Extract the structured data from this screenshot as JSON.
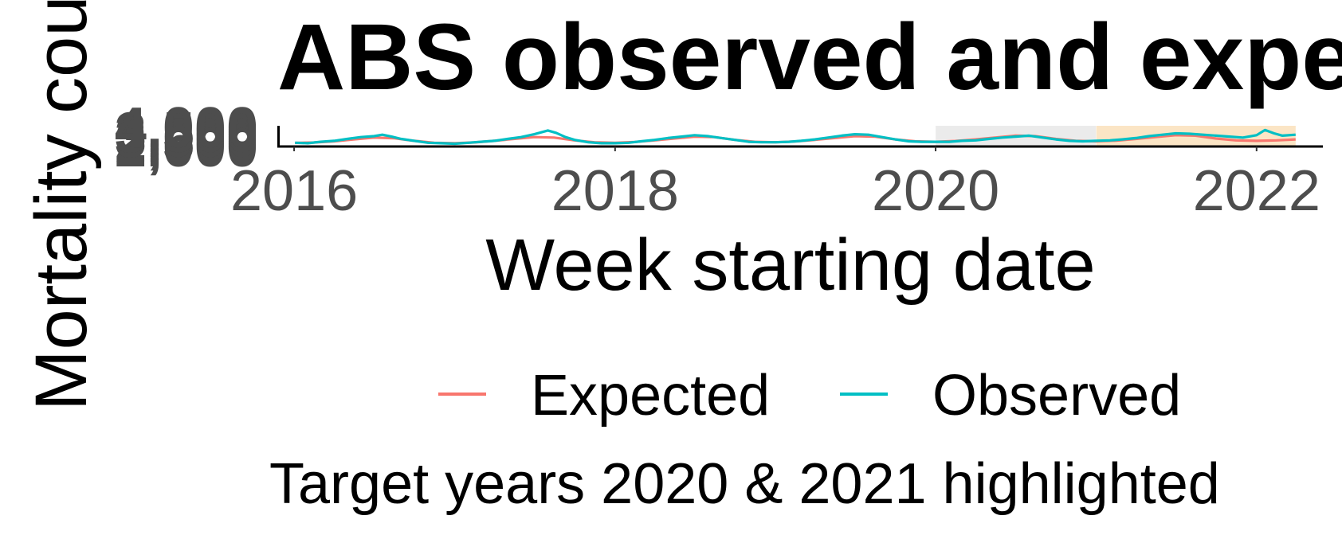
{
  "chart_data": {
    "type": "line",
    "title": "ABS observed and expected",
    "xlabel": "Week starting date",
    "ylabel": "Mortality count",
    "caption": "Target years 2020 & 2021 highlighted",
    "x_range": [
      "2015-12-01",
      "2022-06-01"
    ],
    "ylim": [
      1900,
      4100
    ],
    "x_ticks": [
      {
        "label": "2016",
        "date": "2016-01-01"
      },
      {
        "label": "2018",
        "date": "2018-01-01"
      },
      {
        "label": "2020",
        "date": "2020-01-01"
      },
      {
        "label": "2022",
        "date": "2022-01-01"
      }
    ],
    "y_ticks": [
      {
        "label": "2,000",
        "value": 2000
      },
      {
        "label": "2,500",
        "value": 2500
      },
      {
        "label": "3,000",
        "value": 3000
      },
      {
        "label": "3,500",
        "value": 3500
      },
      {
        "label": "4,000",
        "value": 4000
      }
    ],
    "highlight_regions": [
      {
        "label": "2020",
        "start": "2020-01-01",
        "end": "2020-12-31",
        "color": "#ebebeb"
      },
      {
        "label": "2021",
        "start": "2021-01-01",
        "end": "2022-03-31",
        "color": "#fbe5c5"
      }
    ],
    "legend": {
      "position": "bottom",
      "entries": [
        "Expected",
        "Observed"
      ]
    },
    "series": [
      {
        "name": "Expected",
        "color": "#f8766d",
        "points": [
          [
            "2016-01-03",
            2280
          ],
          [
            "2016-02-15",
            2320
          ],
          [
            "2016-04-01",
            2450
          ],
          [
            "2016-05-15",
            2650
          ],
          [
            "2016-07-01",
            2850
          ],
          [
            "2016-08-15",
            2780
          ],
          [
            "2016-10-01",
            2500
          ],
          [
            "2016-11-15",
            2300
          ],
          [
            "2017-01-01",
            2250
          ],
          [
            "2017-02-15",
            2330
          ],
          [
            "2017-04-01",
            2500
          ],
          [
            "2017-05-15",
            2700
          ],
          [
            "2017-07-01",
            2900
          ],
          [
            "2017-08-15",
            2850
          ],
          [
            "2017-10-01",
            2550
          ],
          [
            "2017-11-15",
            2350
          ],
          [
            "2018-01-01",
            2300
          ],
          [
            "2018-02-15",
            2380
          ],
          [
            "2018-04-01",
            2550
          ],
          [
            "2018-05-15",
            2750
          ],
          [
            "2018-07-01",
            2950
          ],
          [
            "2018-08-15",
            2900
          ],
          [
            "2018-10-01",
            2600
          ],
          [
            "2018-11-15",
            2400
          ],
          [
            "2019-01-01",
            2350
          ],
          [
            "2019-02-15",
            2430
          ],
          [
            "2019-04-01",
            2600
          ],
          [
            "2019-05-15",
            2800
          ],
          [
            "2019-07-01",
            3000
          ],
          [
            "2019-08-15",
            2950
          ],
          [
            "2019-10-01",
            2650
          ],
          [
            "2019-11-15",
            2450
          ],
          [
            "2020-01-01",
            2400
          ],
          [
            "2020-02-15",
            2480
          ],
          [
            "2020-04-01",
            2650
          ],
          [
            "2020-05-15",
            2850
          ],
          [
            "2020-07-01",
            3050
          ],
          [
            "2020-08-15",
            3000
          ],
          [
            "2020-10-01",
            2700
          ],
          [
            "2020-11-15",
            2500
          ],
          [
            "2021-01-01",
            2450
          ],
          [
            "2021-02-15",
            2530
          ],
          [
            "2021-04-01",
            2700
          ],
          [
            "2021-05-15",
            2900
          ],
          [
            "2021-07-01",
            3100
          ],
          [
            "2021-08-15",
            3050
          ],
          [
            "2021-10-01",
            2750
          ],
          [
            "2021-11-15",
            2550
          ],
          [
            "2022-01-01",
            2500
          ],
          [
            "2022-02-15",
            2550
          ],
          [
            "2022-03-31",
            2650
          ]
        ]
      },
      {
        "name": "Observed",
        "color": "#00bfc4",
        "points": [
          [
            "2016-01-03",
            2300
          ],
          [
            "2016-02-01",
            2250
          ],
          [
            "2016-03-01",
            2400
          ],
          [
            "2016-04-01",
            2500
          ],
          [
            "2016-05-01",
            2700
          ],
          [
            "2016-06-01",
            2900
          ],
          [
            "2016-07-01",
            3000
          ],
          [
            "2016-07-20",
            3150
          ],
          [
            "2016-08-10",
            2950
          ],
          [
            "2016-09-01",
            2700
          ],
          [
            "2016-10-01",
            2500
          ],
          [
            "2016-11-01",
            2300
          ],
          [
            "2016-12-01",
            2250
          ],
          [
            "2017-01-01",
            2200
          ],
          [
            "2017-02-01",
            2300
          ],
          [
            "2017-03-01",
            2400
          ],
          [
            "2017-04-01",
            2500
          ],
          [
            "2017-05-01",
            2700
          ],
          [
            "2017-06-01",
            2900
          ],
          [
            "2017-07-01",
            3200
          ],
          [
            "2017-08-01",
            3600
          ],
          [
            "2017-08-20",
            3350
          ],
          [
            "2017-09-10",
            2900
          ],
          [
            "2017-10-01",
            2600
          ],
          [
            "2017-11-01",
            2350
          ],
          [
            "2017-12-01",
            2250
          ],
          [
            "2018-01-01",
            2250
          ],
          [
            "2018-02-01",
            2300
          ],
          [
            "2018-03-01",
            2450
          ],
          [
            "2018-04-01",
            2600
          ],
          [
            "2018-05-01",
            2800
          ],
          [
            "2018-06-01",
            2950
          ],
          [
            "2018-07-01",
            3100
          ],
          [
            "2018-08-01",
            3000
          ],
          [
            "2018-09-01",
            2800
          ],
          [
            "2018-10-01",
            2600
          ],
          [
            "2018-11-01",
            2400
          ],
          [
            "2018-12-01",
            2350
          ],
          [
            "2019-01-01",
            2350
          ],
          [
            "2019-02-01",
            2400
          ],
          [
            "2019-03-01",
            2500
          ],
          [
            "2019-04-01",
            2650
          ],
          [
            "2019-05-01",
            2850
          ],
          [
            "2019-06-01",
            3050
          ],
          [
            "2019-07-01",
            3200
          ],
          [
            "2019-08-01",
            3150
          ],
          [
            "2019-09-01",
            2900
          ],
          [
            "2019-10-01",
            2650
          ],
          [
            "2019-11-01",
            2450
          ],
          [
            "2019-12-01",
            2400
          ],
          [
            "2020-01-01",
            2400
          ],
          [
            "2020-02-01",
            2400
          ],
          [
            "2020-03-01",
            2500
          ],
          [
            "2020-04-01",
            2550
          ],
          [
            "2020-05-01",
            2700
          ],
          [
            "2020-06-01",
            2850
          ],
          [
            "2020-07-01",
            2950
          ],
          [
            "2020-08-01",
            3050
          ],
          [
            "2020-09-01",
            2850
          ],
          [
            "2020-10-01",
            2650
          ],
          [
            "2020-11-01",
            2500
          ],
          [
            "2020-12-01",
            2450
          ],
          [
            "2021-01-01",
            2500
          ],
          [
            "2021-02-01",
            2550
          ],
          [
            "2021-03-01",
            2650
          ],
          [
            "2021-04-01",
            2800
          ],
          [
            "2021-05-01",
            3000
          ],
          [
            "2021-06-01",
            3150
          ],
          [
            "2021-07-01",
            3300
          ],
          [
            "2021-08-01",
            3250
          ],
          [
            "2021-09-01",
            3150
          ],
          [
            "2021-10-01",
            3050
          ],
          [
            "2021-11-01",
            2950
          ],
          [
            "2021-12-01",
            2850
          ],
          [
            "2022-01-01",
            3100
          ],
          [
            "2022-01-20",
            3650
          ],
          [
            "2022-02-10",
            3300
          ],
          [
            "2022-03-01",
            3050
          ],
          [
            "2022-03-31",
            3150
          ]
        ]
      }
    ]
  }
}
